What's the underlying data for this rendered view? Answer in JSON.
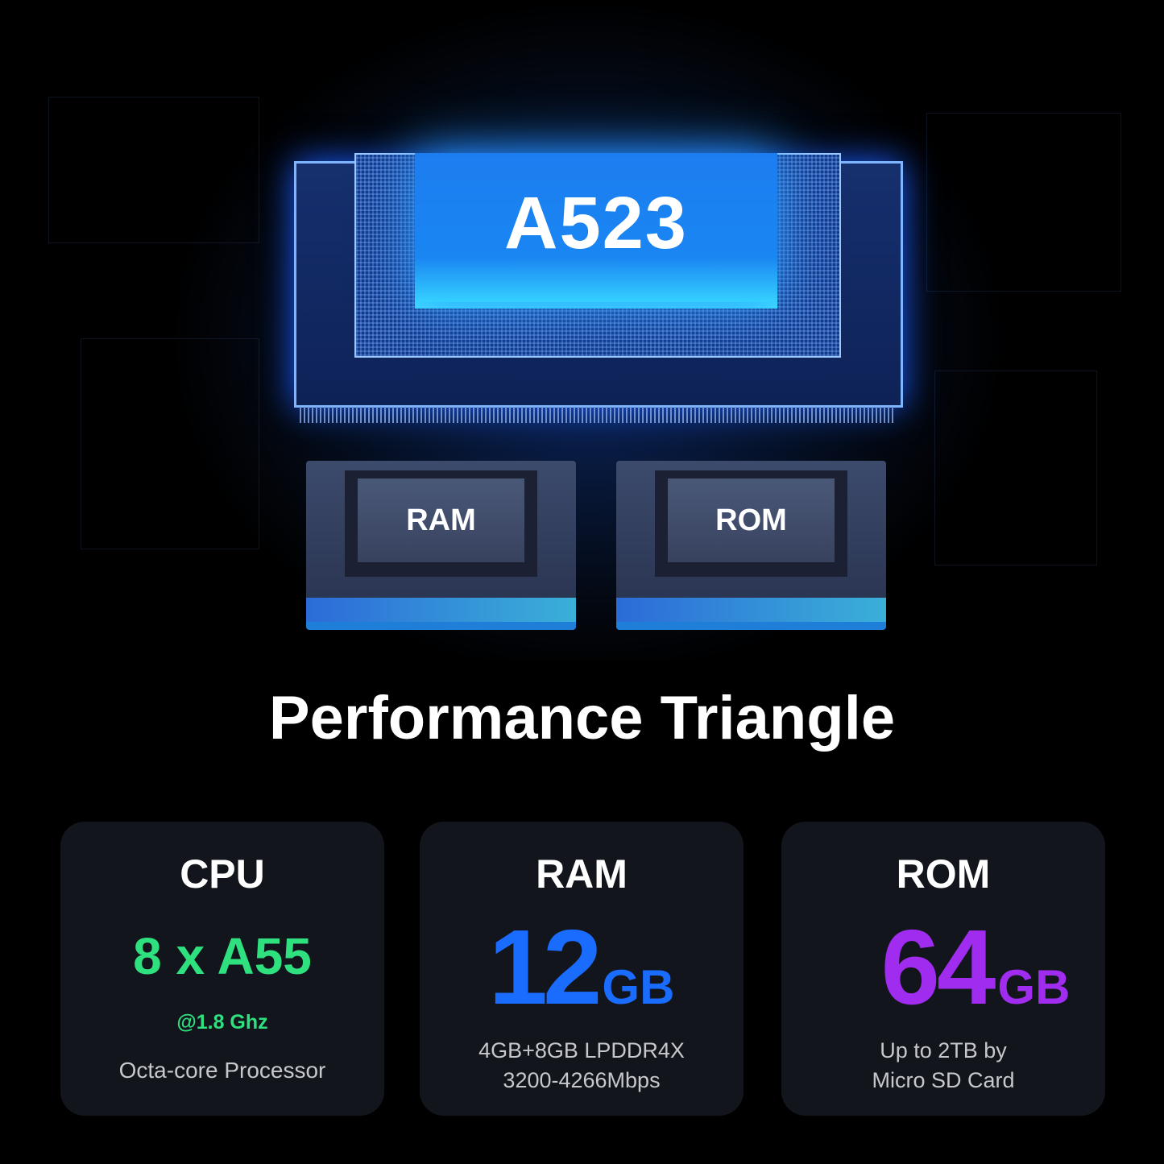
{
  "hero": {
    "main_chip_label": "A523",
    "ram_chip_label": "RAM",
    "rom_chip_label": "ROM"
  },
  "title": "Performance Triangle",
  "cards": [
    {
      "header": "CPU",
      "value": "8 x A55",
      "detail": "@1.8 Ghz",
      "description": "Octa-core Processor",
      "accent": "#2fe07f"
    },
    {
      "header": "RAM",
      "value": "12",
      "unit": "GB",
      "description_lines": [
        "4GB+8GB LPDDR4X",
        "3200-4266Mbps"
      ],
      "accent": "#1a6cff"
    },
    {
      "header": "ROM",
      "value": "64",
      "unit": "GB",
      "description_lines": [
        "Up to 2TB by",
        "Micro SD Card"
      ],
      "accent": "#a02cf0"
    }
  ]
}
